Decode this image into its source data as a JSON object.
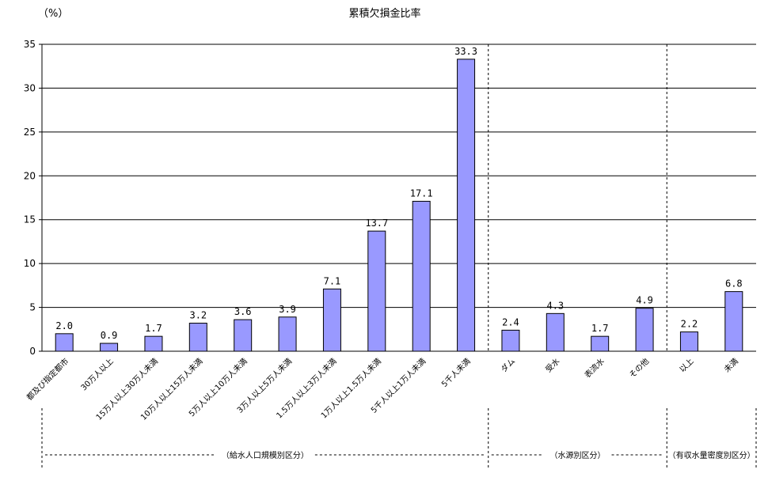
{
  "chart_data": {
    "type": "bar",
    "title": "累積欠損金比率",
    "ylabel": "（%）",
    "ylim": [
      0,
      35
    ],
    "yticks": [
      0,
      5,
      10,
      15,
      20,
      25,
      30,
      35
    ],
    "grid": true,
    "bar_color": "#9999ff",
    "categories": [
      "都及び指定都市",
      "30万人以上",
      "15万人以上30万人未満",
      "10万人以上15万人未満",
      "5万人以上10万人未満",
      "3万人以上5万人未満",
      "1.5万人以上3万人未満",
      "1万人以上1.5万人未満",
      "5千人以上1万人未満",
      "5千人未満",
      "ダム",
      "受水",
      "表流水",
      "その他",
      "以上",
      "未満"
    ],
    "values": [
      2.0,
      0.9,
      1.7,
      3.2,
      3.6,
      3.9,
      7.1,
      13.7,
      17.1,
      33.3,
      2.4,
      4.3,
      1.7,
      4.9,
      2.2,
      6.8
    ],
    "value_labels": [
      "2.0",
      "0.9",
      "1.7",
      "3.2",
      "3.6",
      "3.9",
      "7.1",
      "13.7",
      "17.1",
      "33.3",
      "2.4",
      "4.3",
      "1.7",
      "4.9",
      "2.2",
      "6.8"
    ],
    "groups": [
      {
        "label": "（給水人口規模別区分）",
        "start": 0,
        "end": 9
      },
      {
        "label": "（水源別区分）",
        "start": 10,
        "end": 13
      },
      {
        "label": "（有収水量密度別区分）",
        "start": 14,
        "end": 15
      }
    ]
  }
}
